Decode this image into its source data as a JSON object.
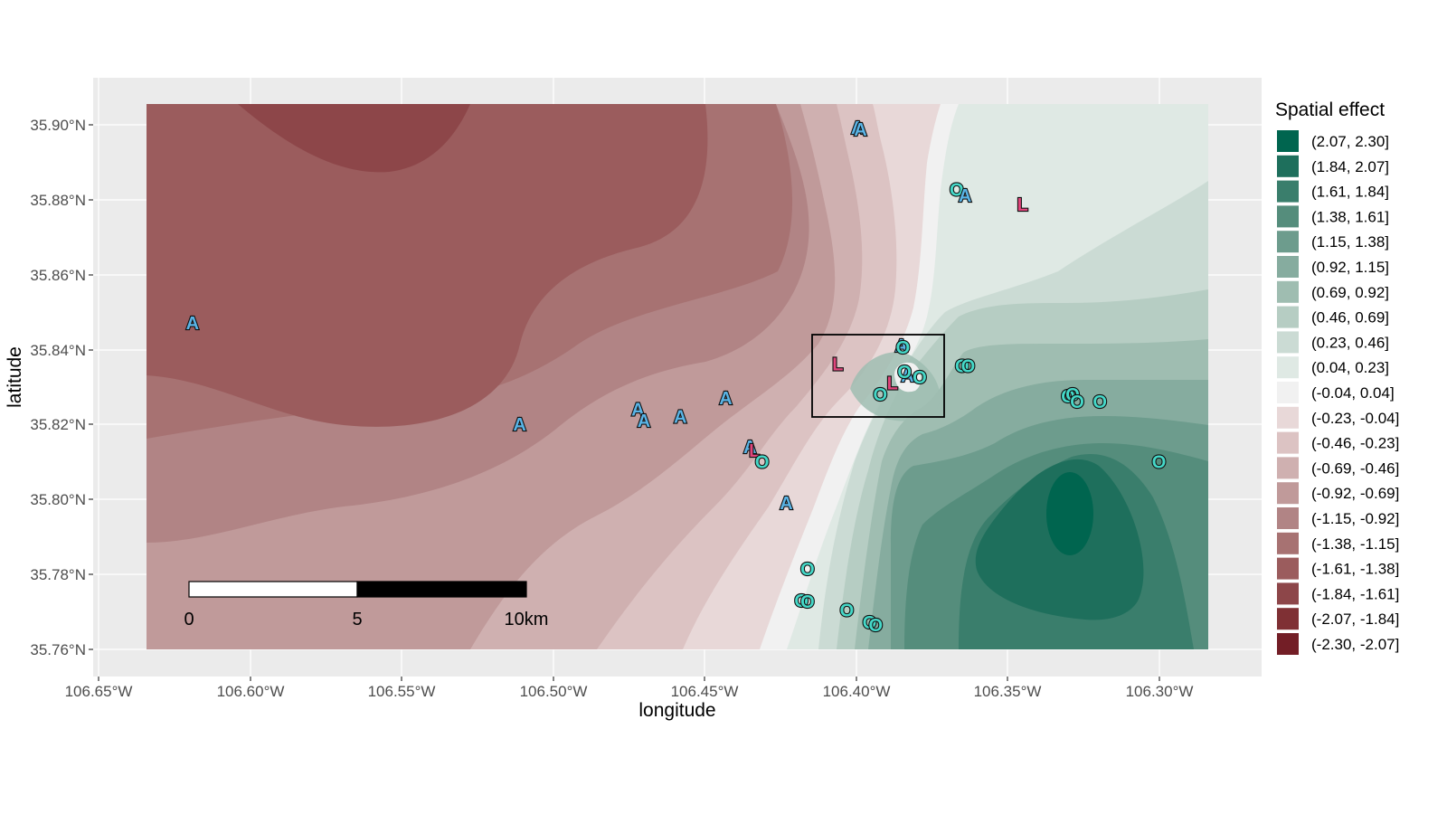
{
  "axes": {
    "x_title": "longitude",
    "y_title": "latitude",
    "x_ticks": [
      "106.65°W",
      "106.60°W",
      "106.55°W",
      "106.50°W",
      "106.45°W",
      "106.40°W",
      "106.35°W",
      "106.30°W"
    ],
    "y_ticks": [
      "35.90°N",
      "35.88°N",
      "35.86°N",
      "35.84°N",
      "35.82°N",
      "35.80°N",
      "35.78°N",
      "35.76°N"
    ]
  },
  "legend": {
    "title": "Spatial effect",
    "items": [
      {
        "label": "(2.07, 2.30]",
        "color": "#00654f"
      },
      {
        "label": "(1.84, 2.07]",
        "color": "#1e6f5c"
      },
      {
        "label": "(1.61, 1.84]",
        "color": "#3a7e6c"
      },
      {
        "label": "(1.38, 1.61]",
        "color": "#558d7c"
      },
      {
        "label": "(1.15, 1.38]",
        "color": "#6d9c8d"
      },
      {
        "label": "(0.92, 1.15]",
        "color": "#86ac9f"
      },
      {
        "label": "(0.69, 0.92]",
        "color": "#9fbdb1"
      },
      {
        "label": "(0.46, 0.69]",
        "color": "#b6cdc3"
      },
      {
        "label": "(0.23, 0.46]",
        "color": "#cbdbd4"
      },
      {
        "label": "(0.04, 0.23]",
        "color": "#dfe9e4"
      },
      {
        "label": "(-0.04, 0.04]",
        "color": "#f1f1f1"
      },
      {
        "label": "(-0.23, -0.04]",
        "color": "#e8d8d8"
      },
      {
        "label": "(-0.46, -0.23]",
        "color": "#dcc3c3"
      },
      {
        "label": "(-0.69, -0.46]",
        "color": "#cfb0b0"
      },
      {
        "label": "(-0.92, -0.69]",
        "color": "#c09a9a"
      },
      {
        "label": "(-1.15, -0.92]",
        "color": "#b18485"
      },
      {
        "label": "(-1.38, -1.15]",
        "color": "#a77272"
      },
      {
        "label": "(-1.61, -1.38]",
        "color": "#9b5c5d"
      },
      {
        "label": "(-1.84, -1.61]",
        "color": "#8d4649"
      },
      {
        "label": "(-2.07, -1.84]",
        "color": "#7f3034"
      },
      {
        "label": "(-2.30, -2.07]",
        "color": "#731e26"
      }
    ]
  },
  "scale_bar": {
    "labels": [
      "0",
      "5",
      "10km"
    ]
  },
  "marker_colors": {
    "A": "#5ab4e6",
    "L": "#e0457b",
    "O": "#45d8c8"
  },
  "markers": [
    {
      "t": "A",
      "lon": -106.3995,
      "lat": 35.899
    },
    {
      "t": "A",
      "lon": -106.3985,
      "lat": 35.8985
    },
    {
      "t": "O",
      "lon": -106.3668,
      "lat": 35.8825
    },
    {
      "t": "A",
      "lon": -106.364,
      "lat": 35.881
    },
    {
      "t": "L",
      "lon": -106.345,
      "lat": 35.8785
    },
    {
      "t": "A",
      "lon": -106.619,
      "lat": 35.847
    },
    {
      "t": "A",
      "lon": -106.511,
      "lat": 35.82
    },
    {
      "t": "A",
      "lon": -106.472,
      "lat": 35.824
    },
    {
      "t": "A",
      "lon": -106.47,
      "lat": 35.821
    },
    {
      "t": "A",
      "lon": -106.458,
      "lat": 35.822
    },
    {
      "t": "A",
      "lon": -106.443,
      "lat": 35.827
    },
    {
      "t": "A",
      "lon": -106.435,
      "lat": 35.814
    },
    {
      "t": "L",
      "lon": -106.4335,
      "lat": 35.813
    },
    {
      "t": "O",
      "lon": -106.431,
      "lat": 35.81
    },
    {
      "t": "A",
      "lon": -106.423,
      "lat": 35.799
    },
    {
      "t": "L",
      "lon": -106.406,
      "lat": 35.836
    },
    {
      "t": "A",
      "lon": -106.385,
      "lat": 35.841
    },
    {
      "t": "O",
      "lon": -106.3845,
      "lat": 35.8405
    },
    {
      "t": "A",
      "lon": -106.383,
      "lat": 35.833
    },
    {
      "t": "O",
      "lon": -106.384,
      "lat": 35.834
    },
    {
      "t": "O",
      "lon": -106.379,
      "lat": 35.8325
    },
    {
      "t": "L",
      "lon": -106.388,
      "lat": 35.831
    },
    {
      "t": "O",
      "lon": -106.392,
      "lat": 35.828
    },
    {
      "t": "O",
      "lon": -106.365,
      "lat": 35.8355
    },
    {
      "t": "O",
      "lon": -106.363,
      "lat": 35.8355
    },
    {
      "t": "O",
      "lon": -106.33,
      "lat": 35.8275
    },
    {
      "t": "O",
      "lon": -106.3285,
      "lat": 35.828
    },
    {
      "t": "O",
      "lon": -106.327,
      "lat": 35.826
    },
    {
      "t": "O",
      "lon": -106.3195,
      "lat": 35.826
    },
    {
      "t": "O",
      "lon": -106.3,
      "lat": 35.81
    },
    {
      "t": "O",
      "lon": -106.416,
      "lat": 35.7815
    },
    {
      "t": "O",
      "lon": -106.418,
      "lat": 35.773
    },
    {
      "t": "O",
      "lon": -106.416,
      "lat": 35.7728
    },
    {
      "t": "O",
      "lon": -106.403,
      "lat": 35.7705
    },
    {
      "t": "O",
      "lon": -106.3955,
      "lat": 35.7672
    },
    {
      "t": "O",
      "lon": -106.3935,
      "lat": 35.7665
    }
  ]
}
